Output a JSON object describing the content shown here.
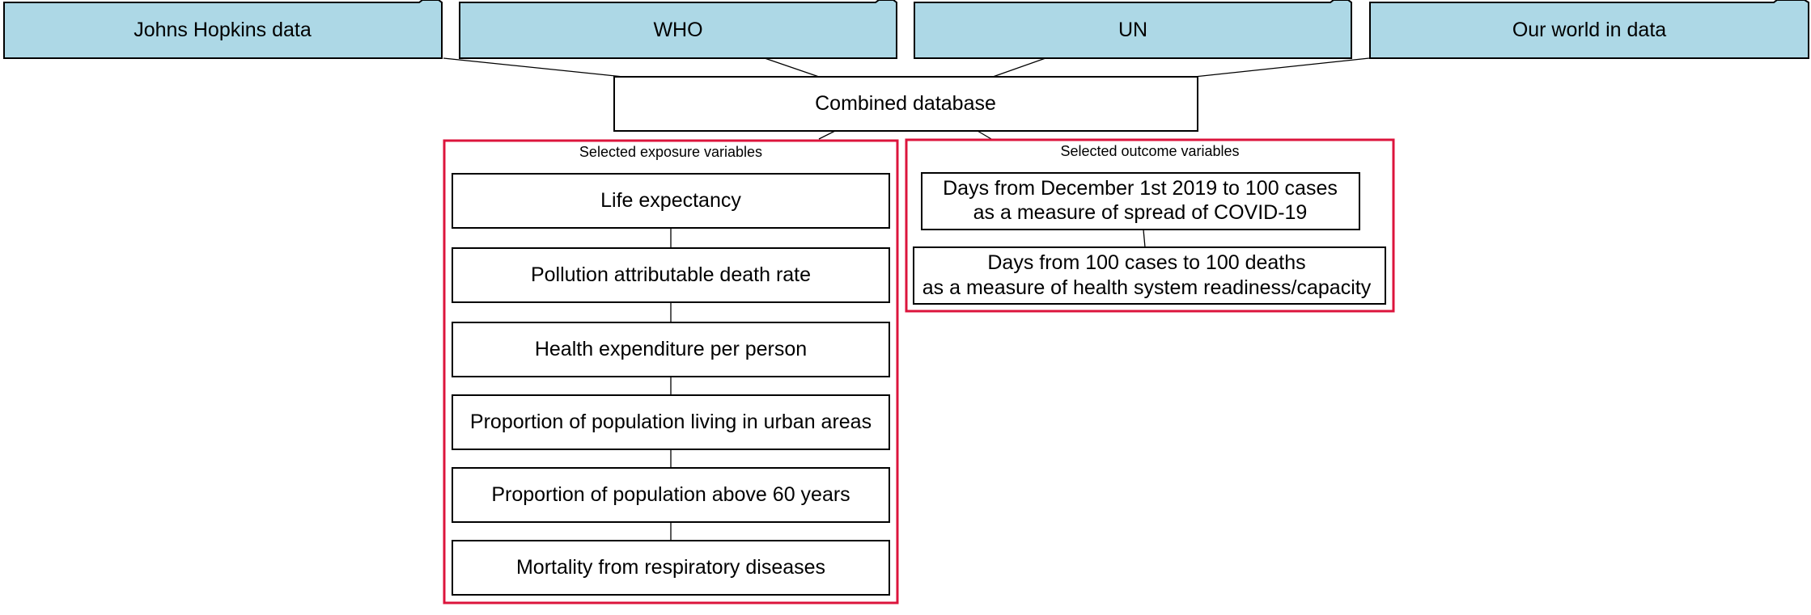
{
  "sources": [
    {
      "label": "Johns Hopkins data"
    },
    {
      "label": "WHO"
    },
    {
      "label": "UN"
    },
    {
      "label": "Our world in data"
    }
  ],
  "combined": {
    "label": "Combined database"
  },
  "exposure": {
    "title": "Selected exposure variables",
    "items": [
      {
        "lines": [
          "Life expectancy"
        ]
      },
      {
        "lines": [
          "Pollution attributable death rate"
        ]
      },
      {
        "lines": [
          "Health expenditure per person"
        ]
      },
      {
        "lines": [
          "Proportion of population living in urban areas"
        ]
      },
      {
        "lines": [
          "Proportion of population above 60 years"
        ]
      },
      {
        "lines": [
          "Mortality from respiratory diseases"
        ]
      }
    ]
  },
  "outcome": {
    "title": "Selected outcome variables",
    "items": [
      {
        "lines": [
          "Days from December 1st 2019 to 100 cases",
          "as a measure of spread of COVID-19"
        ]
      },
      {
        "lines": [
          "Days from 100 cases to 100 deaths",
          "as a measure of health system readiness/capacity"
        ]
      }
    ]
  },
  "colors": {
    "source_fill": "#add8e6",
    "cluster_border": "#dc143c",
    "stroke": "#000000",
    "background": "#ffffff"
  }
}
